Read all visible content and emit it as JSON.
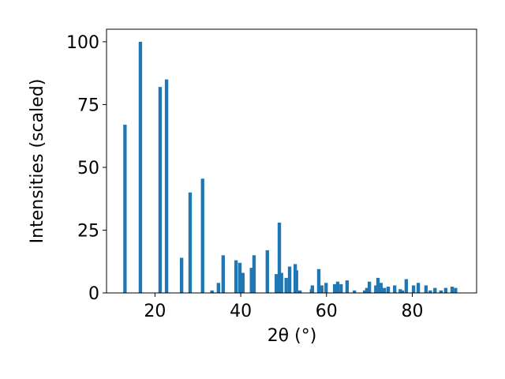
{
  "chart_data": {
    "type": "bar",
    "xlabel": "2θ (°)",
    "ylabel": "Intensities (scaled)",
    "color": "#1f77b4",
    "x": [
      13.0,
      16.6,
      21.2,
      22.7,
      26.2,
      28.2,
      31.1,
      33.3,
      34.8,
      35.9,
      38.9,
      39.8,
      40.5,
      42.5,
      43.1,
      46.2,
      48.3,
      49.0,
      49.5,
      50.6,
      51.4,
      52.7,
      53.0,
      53.8,
      56.5,
      56.7,
      58.2,
      58.9,
      59.9,
      61.9,
      62.6,
      63.4,
      64.8,
      66.5,
      68.9,
      69.4,
      70.0,
      71.5,
      72.0,
      72.7,
      73.5,
      74.4,
      75.9,
      77.2,
      77.7,
      78.6,
      80.3,
      81.4,
      83.2,
      84.2,
      85.3,
      86.7,
      87.8,
      89.3,
      90.1
    ],
    "values": [
      67,
      100,
      82,
      85,
      14,
      40,
      45.5,
      1,
      4,
      15,
      13,
      12,
      8,
      10,
      15,
      17,
      7.5,
      28,
      8,
      6,
      10.5,
      11.5,
      9,
      1,
      1.5,
      3,
      9.5,
      3,
      4,
      3.5,
      4.5,
      3.5,
      5,
      1,
      1,
      2,
      4.5,
      3,
      6,
      4,
      2,
      2.5,
      3,
      1.5,
      1,
      5.5,
      3,
      4,
      3,
      1,
      2,
      1,
      2,
      2.5,
      2
    ],
    "xlim": [
      8.7,
      95.0
    ],
    "xticks": [
      20,
      40,
      60,
      80
    ],
    "ylim": [
      0,
      105
    ],
    "yticks": [
      0,
      25,
      50,
      75,
      100
    ]
  }
}
